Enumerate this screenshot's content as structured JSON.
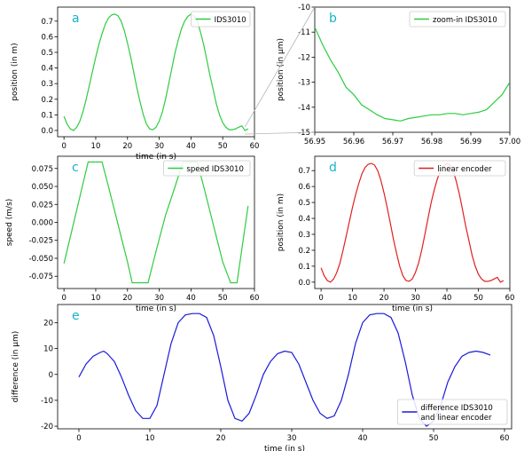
{
  "chart_data": [
    {
      "id": "a",
      "type": "line",
      "panel_letter": "a",
      "xlabel": "time (in s)",
      "ylabel": "position (in m)",
      "xlim": [
        -2,
        60
      ],
      "ylim": [
        -0.04,
        0.79
      ],
      "xticks": [
        0,
        10,
        20,
        30,
        40,
        50,
        60
      ],
      "yticks": [
        0.0,
        0.1,
        0.2,
        0.3,
        0.4,
        0.5,
        0.6,
        0.7
      ],
      "ytick_labels": [
        "0.0",
        "0.1",
        "0.2",
        "0.3",
        "0.4",
        "0.5",
        "0.6",
        "0.7"
      ],
      "legend": "top-right",
      "series": [
        {
          "name": "IDS3010",
          "color": "#2ecc40",
          "x": [
            0,
            1,
            2,
            3,
            4,
            5,
            6,
            7,
            8,
            9,
            10,
            11,
            12,
            13,
            14,
            15,
            16,
            17,
            18,
            19,
            20,
            21,
            22,
            23,
            24,
            25,
            26,
            27,
            28,
            29,
            30,
            31,
            32,
            33,
            34,
            35,
            36,
            37,
            38,
            39,
            40,
            41,
            42,
            43,
            44,
            45,
            46,
            47,
            48,
            49,
            50,
            51,
            52,
            53,
            54,
            55,
            56,
            57,
            58
          ],
          "y": [
            0.09,
            0.04,
            0.01,
            0.0,
            0.02,
            0.06,
            0.12,
            0.2,
            0.29,
            0.38,
            0.47,
            0.55,
            0.62,
            0.68,
            0.72,
            0.74,
            0.745,
            0.735,
            0.7,
            0.64,
            0.56,
            0.47,
            0.37,
            0.27,
            0.18,
            0.1,
            0.04,
            0.01,
            0.005,
            0.02,
            0.06,
            0.12,
            0.2,
            0.3,
            0.4,
            0.5,
            0.58,
            0.65,
            0.7,
            0.73,
            0.745,
            0.735,
            0.7,
            0.63,
            0.55,
            0.45,
            0.35,
            0.26,
            0.17,
            0.1,
            0.05,
            0.02,
            0.005,
            0.005,
            0.01,
            0.02,
            0.03,
            0.0,
            0.01
          ]
        }
      ]
    },
    {
      "id": "b",
      "type": "line",
      "panel_letter": "b",
      "xlabel": "",
      "ylabel": "position (in µm)",
      "xlim": [
        56.95,
        57.0
      ],
      "ylim": [
        -15,
        -10
      ],
      "xticks": [
        56.95,
        56.96,
        56.97,
        56.98,
        56.99,
        57.0
      ],
      "xtick_labels": [
        "56.95",
        "56.96",
        "56.97",
        "56.98",
        "56.99",
        "57.00"
      ],
      "yticks": [
        -15,
        -14,
        -13,
        -12,
        -11,
        -10
      ],
      "legend": "top-right",
      "series": [
        {
          "name": "zoom-in IDS3010",
          "color": "#2ecc40",
          "x": [
            56.95,
            56.952,
            56.954,
            56.956,
            56.958,
            56.96,
            56.962,
            56.964,
            56.966,
            56.968,
            56.97,
            56.972,
            56.974,
            56.976,
            56.978,
            56.98,
            56.982,
            56.984,
            56.986,
            56.988,
            56.99,
            56.992,
            56.994,
            56.996,
            56.998,
            57.0
          ],
          "y": [
            -10.8,
            -11.5,
            -12.1,
            -12.6,
            -13.2,
            -13.5,
            -13.9,
            -14.1,
            -14.3,
            -14.45,
            -14.5,
            -14.55,
            -14.45,
            -14.4,
            -14.35,
            -14.3,
            -14.3,
            -14.25,
            -14.25,
            -14.3,
            -14.25,
            -14.2,
            -14.1,
            -13.8,
            -13.5,
            -13.0
          ]
        }
      ]
    },
    {
      "id": "c",
      "type": "line",
      "panel_letter": "c",
      "xlabel": "time (in s)",
      "ylabel": "speed (m/s)",
      "xlim": [
        -2,
        60
      ],
      "ylim": [
        -0.092,
        0.092
      ],
      "xticks": [
        0,
        10,
        20,
        30,
        40,
        50,
        60
      ],
      "yticks": [
        -0.075,
        -0.05,
        -0.025,
        0.0,
        0.025,
        0.05,
        0.075
      ],
      "ytick_labels": [
        "-0.075",
        "-0.050",
        "-0.025",
        "0.000",
        "0.025",
        "0.050",
        "0.075"
      ],
      "legend": "top-right",
      "series": [
        {
          "name": "speed IDS3010",
          "color": "#2ecc40",
          "x": [
            0,
            7.6,
            9.5,
            11.5,
            12.0,
            14,
            16,
            18,
            20,
            21.5,
            23.5,
            25.5,
            26.5,
            29,
            32,
            35,
            37.5,
            39,
            41,
            42,
            44,
            46,
            48,
            50,
            52.5,
            54.5,
            58
          ],
          "y": [
            -0.057,
            0.084,
            0.084,
            0.084,
            0.084,
            0.05,
            0.015,
            -0.02,
            -0.055,
            -0.084,
            -0.084,
            -0.084,
            -0.084,
            -0.04,
            0.01,
            0.05,
            0.084,
            0.084,
            0.084,
            0.084,
            0.05,
            0.015,
            -0.02,
            -0.055,
            -0.084,
            -0.084,
            0.023
          ]
        }
      ]
    },
    {
      "id": "d",
      "type": "line",
      "panel_letter": "d",
      "xlabel": "time (in s)",
      "ylabel": "position (in m)",
      "xlim": [
        -2,
        60
      ],
      "ylim": [
        -0.04,
        0.79
      ],
      "xticks": [
        0,
        10,
        20,
        30,
        40,
        50,
        60
      ],
      "yticks": [
        0.0,
        0.1,
        0.2,
        0.3,
        0.4,
        0.5,
        0.6,
        0.7
      ],
      "ytick_labels": [
        "0.0",
        "0.1",
        "0.2",
        "0.3",
        "0.4",
        "0.5",
        "0.6",
        "0.7"
      ],
      "legend": "top-right",
      "series": [
        {
          "name": "linear encoder",
          "color": "#e02020",
          "x": [
            0,
            1,
            2,
            3,
            4,
            5,
            6,
            7,
            8,
            9,
            10,
            11,
            12,
            13,
            14,
            15,
            16,
            17,
            18,
            19,
            20,
            21,
            22,
            23,
            24,
            25,
            26,
            27,
            28,
            29,
            30,
            31,
            32,
            33,
            34,
            35,
            36,
            37,
            38,
            39,
            40,
            41,
            42,
            43,
            44,
            45,
            46,
            47,
            48,
            49,
            50,
            51,
            52,
            53,
            54,
            55,
            56,
            57,
            58
          ],
          "y": [
            0.09,
            0.04,
            0.01,
            0.0,
            0.02,
            0.06,
            0.12,
            0.2,
            0.29,
            0.38,
            0.47,
            0.55,
            0.62,
            0.68,
            0.72,
            0.74,
            0.745,
            0.735,
            0.7,
            0.64,
            0.56,
            0.47,
            0.37,
            0.27,
            0.18,
            0.1,
            0.04,
            0.01,
            0.005,
            0.02,
            0.06,
            0.12,
            0.2,
            0.3,
            0.4,
            0.5,
            0.58,
            0.65,
            0.7,
            0.73,
            0.745,
            0.735,
            0.7,
            0.63,
            0.55,
            0.45,
            0.35,
            0.26,
            0.17,
            0.1,
            0.05,
            0.02,
            0.005,
            0.005,
            0.01,
            0.02,
            0.03,
            0.0,
            0.01
          ]
        }
      ]
    },
    {
      "id": "e",
      "type": "line",
      "panel_letter": "e",
      "xlabel": "time (in s)",
      "ylabel": "difference (in µm)",
      "xlim": [
        -3,
        61
      ],
      "ylim": [
        -21,
        27
      ],
      "xticks": [
        0,
        10,
        20,
        30,
        40,
        50,
        60
      ],
      "yticks": [
        -20,
        -10,
        0,
        10,
        20
      ],
      "legend": "bottom-right",
      "series": [
        {
          "name": "difference IDS3010\nand linear encoder",
          "color": "#1a1adb",
          "x": [
            0,
            1,
            2,
            3,
            3.5,
            4,
            5,
            6,
            7,
            8,
            9,
            10,
            11,
            12,
            13,
            14,
            15,
            16,
            17,
            18,
            19,
            20,
            21,
            22,
            23,
            24,
            25,
            26,
            27,
            28,
            29,
            30,
            31,
            32,
            33,
            34,
            35,
            36,
            37,
            38,
            39,
            40,
            41,
            42,
            43,
            44,
            45,
            46,
            47,
            48,
            49,
            50,
            51,
            52,
            53,
            54,
            55,
            56,
            57,
            58
          ],
          "y": [
            -1,
            4,
            7,
            8.5,
            9,
            8,
            5,
            -1,
            -8,
            -14,
            -17,
            -17,
            -12,
            0,
            12,
            20,
            23,
            23.5,
            23.5,
            22,
            15,
            3,
            -10,
            -17,
            -18,
            -15,
            -8,
            0,
            5,
            8,
            9,
            8.5,
            4,
            -3,
            -10,
            -15,
            -17,
            -16,
            -10,
            0,
            12,
            20,
            23,
            23.5,
            23.5,
            22,
            16,
            5,
            -8,
            -17,
            -20,
            -18,
            -12,
            -3,
            3,
            7,
            8.5,
            9,
            8.5,
            7.5
          ]
        }
      ]
    }
  ]
}
